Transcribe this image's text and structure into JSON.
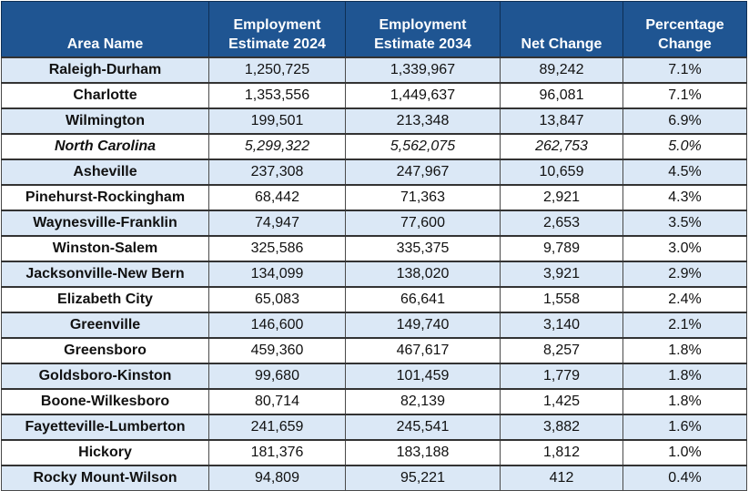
{
  "table": {
    "headers": [
      {
        "line1": "",
        "line2": "Area Name"
      },
      {
        "line1": "Employment",
        "line2": "Estimate 2024"
      },
      {
        "line1": "Employment",
        "line2": "Estimate 2034"
      },
      {
        "line1": "",
        "line2": "Net Change"
      },
      {
        "line1": "Percentage",
        "line2": "Change"
      }
    ],
    "rows": [
      {
        "area": "Raleigh-Durham",
        "est2024": "1,250,725",
        "est2034": "1,339,967",
        "net": "89,242",
        "pct": "7.1%"
      },
      {
        "area": "Charlotte",
        "est2024": "1,353,556",
        "est2034": "1,449,637",
        "net": "96,081",
        "pct": "7.1%"
      },
      {
        "area": "Wilmington",
        "est2024": "199,501",
        "est2034": "213,348",
        "net": "13,847",
        "pct": "6.9%"
      },
      {
        "area": "North Carolina",
        "est2024": "5,299,322",
        "est2034": "5,562,075",
        "net": "262,753",
        "pct": "5.0%",
        "is_total": true
      },
      {
        "area": "Asheville",
        "est2024": "237,308",
        "est2034": "247,967",
        "net": "10,659",
        "pct": "4.5%"
      },
      {
        "area": "Pinehurst-Rockingham",
        "est2024": "68,442",
        "est2034": "71,363",
        "net": "2,921",
        "pct": "4.3%"
      },
      {
        "area": "Waynesville-Franklin",
        "est2024": "74,947",
        "est2034": "77,600",
        "net": "2,653",
        "pct": "3.5%"
      },
      {
        "area": "Winston-Salem",
        "est2024": "325,586",
        "est2034": "335,375",
        "net": "9,789",
        "pct": "3.0%"
      },
      {
        "area": "Jacksonville-New Bern",
        "est2024": "134,099",
        "est2034": "138,020",
        "net": "3,921",
        "pct": "2.9%"
      },
      {
        "area": "Elizabeth City",
        "est2024": "65,083",
        "est2034": "66,641",
        "net": "1,558",
        "pct": "2.4%"
      },
      {
        "area": "Greenville",
        "est2024": "146,600",
        "est2034": "149,740",
        "net": "3,140",
        "pct": "2.1%"
      },
      {
        "area": "Greensboro",
        "est2024": "459,360",
        "est2034": "467,617",
        "net": "8,257",
        "pct": "1.8%"
      },
      {
        "area": "Goldsboro-Kinston",
        "est2024": "99,680",
        "est2034": "101,459",
        "net": "1,779",
        "pct": "1.8%"
      },
      {
        "area": "Boone-Wilkesboro",
        "est2024": "80,714",
        "est2034": "82,139",
        "net": "1,425",
        "pct": "1.8%"
      },
      {
        "area": "Fayetteville-Lumberton",
        "est2024": "241,659",
        "est2034": "245,541",
        "net": "3,882",
        "pct": "1.6%"
      },
      {
        "area": "Hickory",
        "est2024": "181,376",
        "est2034": "183,188",
        "net": "1,812",
        "pct": "1.0%"
      },
      {
        "area": "Rocky Mount-Wilson",
        "est2024": "94,809",
        "est2034": "95,221",
        "net": "412",
        "pct": "0.4%"
      }
    ]
  },
  "colors": {
    "header_bg": "#1f5592",
    "header_text": "#ffffff",
    "band_row": "#dbe8f6",
    "plain_row": "#ffffff"
  }
}
